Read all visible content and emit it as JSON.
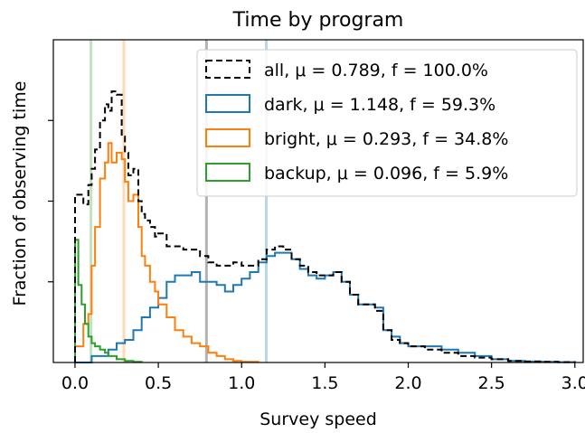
{
  "chart_data": {
    "type": "histogram-step",
    "title": "Time by program",
    "xlabel": "Survey speed",
    "ylabel": "Fraction of observing time",
    "xlim": [
      -0.13,
      3.05
    ],
    "ylim": [
      0,
      1.0
    ],
    "xticks": [
      "0.0",
      "0.5",
      "1.0",
      "1.5",
      "2.0",
      "2.5",
      "3.0"
    ],
    "xtick_values": [
      0.0,
      0.5,
      1.0,
      1.5,
      2.0,
      2.5,
      3.0
    ],
    "ytick_values": [
      0.25,
      0.5,
      0.75
    ],
    "grid": false,
    "legend_position": "upper right",
    "series": [
      {
        "name": "all",
        "mean_label": "μ = 0.789",
        "fraction_label": "f = 100.0%",
        "color": "#000000",
        "linestyle": "dashed",
        "mean": 0.789,
        "x": [
          0.0,
          0.05,
          0.08,
          0.1,
          0.12,
          0.15,
          0.18,
          0.2,
          0.22,
          0.25,
          0.28,
          0.3,
          0.32,
          0.35,
          0.38,
          0.4,
          0.42,
          0.45,
          0.48,
          0.5,
          0.55,
          0.6,
          0.65,
          0.7,
          0.75,
          0.8,
          0.85,
          0.9,
          0.95,
          1.0,
          1.05,
          1.1,
          1.15,
          1.2,
          1.25,
          1.3,
          1.35,
          1.4,
          1.45,
          1.5,
          1.55,
          1.6,
          1.65,
          1.7,
          1.75,
          1.8,
          1.85,
          1.9,
          1.95,
          2.0,
          2.1,
          2.2,
          2.3,
          2.4,
          2.5,
          2.6,
          2.7,
          2.8,
          2.9,
          3.0
        ],
        "values": [
          0.52,
          0.49,
          0.55,
          0.6,
          0.66,
          0.75,
          0.8,
          0.78,
          0.84,
          0.83,
          0.7,
          0.65,
          0.58,
          0.6,
          0.5,
          0.46,
          0.44,
          0.42,
          0.39,
          0.4,
          0.36,
          0.36,
          0.35,
          0.35,
          0.33,
          0.31,
          0.3,
          0.3,
          0.31,
          0.3,
          0.3,
          0.32,
          0.35,
          0.36,
          0.35,
          0.32,
          0.3,
          0.28,
          0.27,
          0.27,
          0.28,
          0.25,
          0.21,
          0.18,
          0.18,
          0.16,
          0.1,
          0.07,
          0.06,
          0.05,
          0.04,
          0.03,
          0.02,
          0.015,
          0.01,
          0.005,
          0.003,
          0.002,
          0.001,
          0.0
        ]
      },
      {
        "name": "dark",
        "mean_label": "μ = 1.148",
        "fraction_label": "f = 59.3%",
        "color": "#1f77b4",
        "linestyle": "solid",
        "mean": 1.148,
        "x": [
          0.0,
          0.1,
          0.2,
          0.25,
          0.3,
          0.35,
          0.4,
          0.45,
          0.5,
          0.55,
          0.6,
          0.65,
          0.7,
          0.75,
          0.8,
          0.85,
          0.9,
          0.95,
          1.0,
          1.05,
          1.1,
          1.15,
          1.2,
          1.25,
          1.3,
          1.35,
          1.4,
          1.45,
          1.5,
          1.55,
          1.6,
          1.65,
          1.7,
          1.75,
          1.8,
          1.85,
          1.9,
          1.95,
          2.0,
          2.1,
          2.2,
          2.3,
          2.4,
          2.5,
          2.6,
          2.7,
          2.8,
          2.9,
          3.0
        ],
        "values": [
          0.0,
          0.02,
          0.04,
          0.06,
          0.07,
          0.1,
          0.14,
          0.17,
          0.2,
          0.25,
          0.27,
          0.27,
          0.28,
          0.25,
          0.25,
          0.24,
          0.22,
          0.24,
          0.26,
          0.28,
          0.31,
          0.33,
          0.34,
          0.34,
          0.32,
          0.29,
          0.27,
          0.26,
          0.27,
          0.28,
          0.25,
          0.21,
          0.18,
          0.18,
          0.17,
          0.1,
          0.08,
          0.06,
          0.05,
          0.05,
          0.04,
          0.03,
          0.02,
          0.01,
          0.005,
          0.003,
          0.002,
          0.001,
          0.0
        ]
      },
      {
        "name": "bright",
        "mean_label": "μ = 0.293",
        "fraction_label": "f = 34.8%",
        "color": "#ff7f0e",
        "linestyle": "solid",
        "mean": 0.293,
        "x": [
          0.0,
          0.05,
          0.08,
          0.1,
          0.12,
          0.15,
          0.18,
          0.2,
          0.22,
          0.25,
          0.28,
          0.3,
          0.32,
          0.35,
          0.38,
          0.4,
          0.42,
          0.45,
          0.48,
          0.5,
          0.55,
          0.6,
          0.65,
          0.7,
          0.75,
          0.8,
          0.85,
          0.9,
          0.95,
          1.0,
          1.1
        ],
        "values": [
          0.05,
          0.12,
          0.15,
          0.3,
          0.42,
          0.57,
          0.62,
          0.68,
          0.62,
          0.65,
          0.63,
          0.56,
          0.5,
          0.52,
          0.42,
          0.33,
          0.3,
          0.25,
          0.22,
          0.18,
          0.14,
          0.1,
          0.08,
          0.06,
          0.05,
          0.03,
          0.02,
          0.01,
          0.005,
          0.002,
          0.0
        ]
      },
      {
        "name": "backup",
        "mean_label": "μ = 0.096",
        "fraction_label": "f = 5.9%",
        "color": "#2ca02c",
        "linestyle": "solid",
        "mean": 0.096,
        "x": [
          0.0,
          0.02,
          0.04,
          0.06,
          0.08,
          0.1,
          0.12,
          0.15,
          0.18,
          0.2,
          0.25,
          0.3,
          0.35,
          0.4
        ],
        "values": [
          0.38,
          0.24,
          0.18,
          0.12,
          0.08,
          0.06,
          0.05,
          0.04,
          0.03,
          0.02,
          0.01,
          0.005,
          0.002,
          0.0
        ]
      }
    ]
  }
}
